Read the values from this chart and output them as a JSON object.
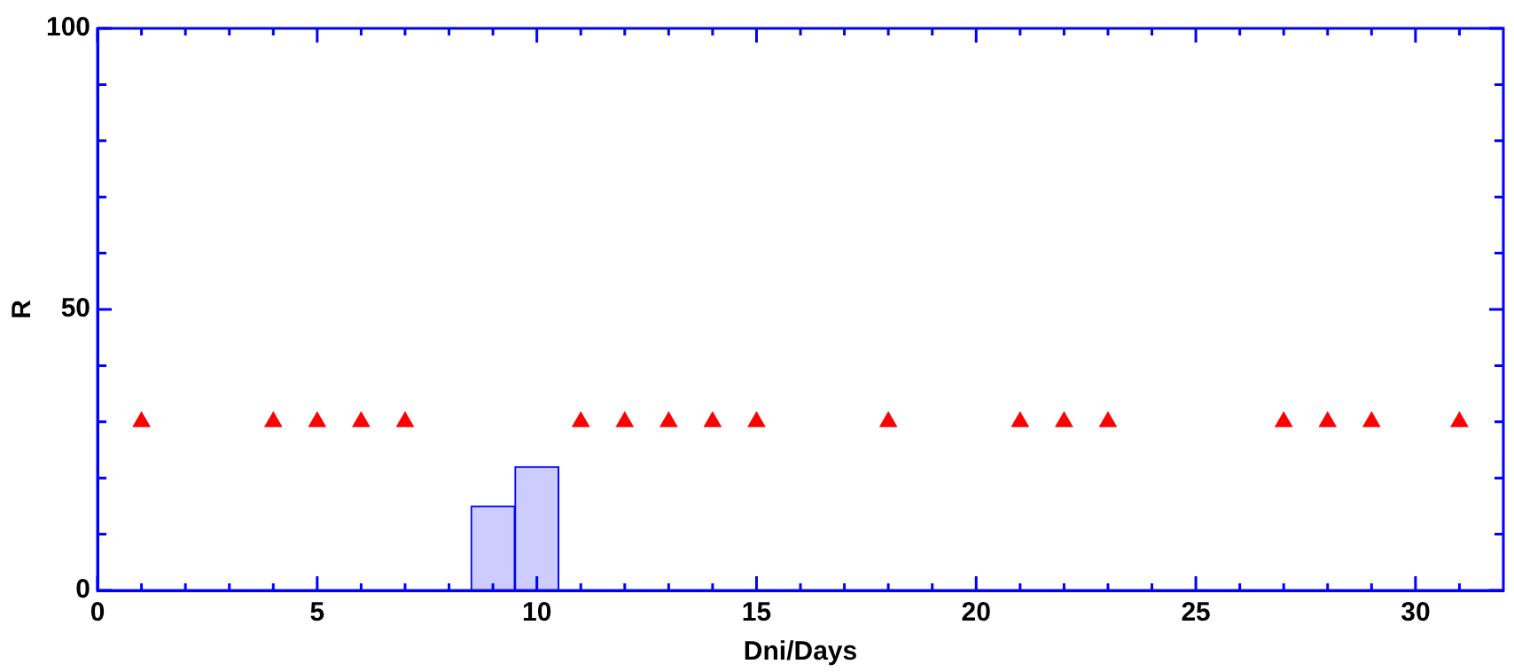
{
  "chart_data": {
    "type": "histogram",
    "xlabel": "Dni/Days",
    "ylabel": "R",
    "bins": [
      8.5,
      9.5,
      10.5
    ],
    "values": [
      15,
      22
    ],
    "color": "#ccccff",
    "series": [
      {
        "type": "scatter",
        "x": [
          1,
          4,
          5,
          6,
          7,
          11,
          12,
          13,
          14,
          15,
          18,
          21,
          22,
          23,
          27,
          28,
          29,
          31
        ],
        "values": [
          30,
          30,
          30,
          30,
          30,
          30,
          30,
          30,
          30,
          30,
          30,
          30,
          30,
          30,
          30,
          30,
          30,
          30
        ],
        "color": "#ff0000"
      }
    ],
    "marker": "triangle",
    "grid": false,
    "legend": false,
    "xlim": [
      0,
      32
    ],
    "xticks": [
      0,
      {
        "value": 1,
        "label": null
      },
      {
        "value": 2,
        "label": null
      },
      {
        "value": 3,
        "label": null
      },
      {
        "value": 4,
        "label": null
      },
      5,
      {
        "value": 6,
        "label": null
      },
      {
        "value": 7,
        "label": null
      },
      {
        "value": 8,
        "label": null
      },
      {
        "value": 9,
        "label": null
      },
      10,
      {
        "value": 11,
        "label": null
      },
      {
        "value": 12,
        "label": null
      },
      {
        "value": 13,
        "label": null
      },
      {
        "value": 14,
        "label": null
      },
      15,
      {
        "value": 16,
        "label": null
      },
      {
        "value": 17,
        "label": null
      },
      {
        "value": 18,
        "label": null
      },
      {
        "value": 19,
        "label": null
      },
      20,
      {
        "value": 21,
        "label": null
      },
      {
        "value": 22,
        "label": null
      },
      {
        "value": 23,
        "label": null
      },
      {
        "value": 24,
        "label": null
      },
      25,
      {
        "value": 26,
        "label": null
      },
      {
        "value": 27,
        "label": null
      },
      {
        "value": 28,
        "label": null
      },
      {
        "value": 29,
        "label": null
      },
      30,
      {
        "value": 31,
        "label": null
      }
    ],
    "ylim": [
      0,
      100
    ],
    "yticks": [
      0,
      {
        "value": 10,
        "label": null
      },
      {
        "value": 20,
        "label": null
      },
      {
        "value": 30,
        "label": null
      },
      {
        "value": 40,
        "label": null
      },
      50,
      {
        "value": 60,
        "label": null
      },
      {
        "value": 70,
        "label": null
      },
      {
        "value": 80,
        "label": null
      },
      {
        "value": 90,
        "label": null
      },
      100
    ]
  }
}
